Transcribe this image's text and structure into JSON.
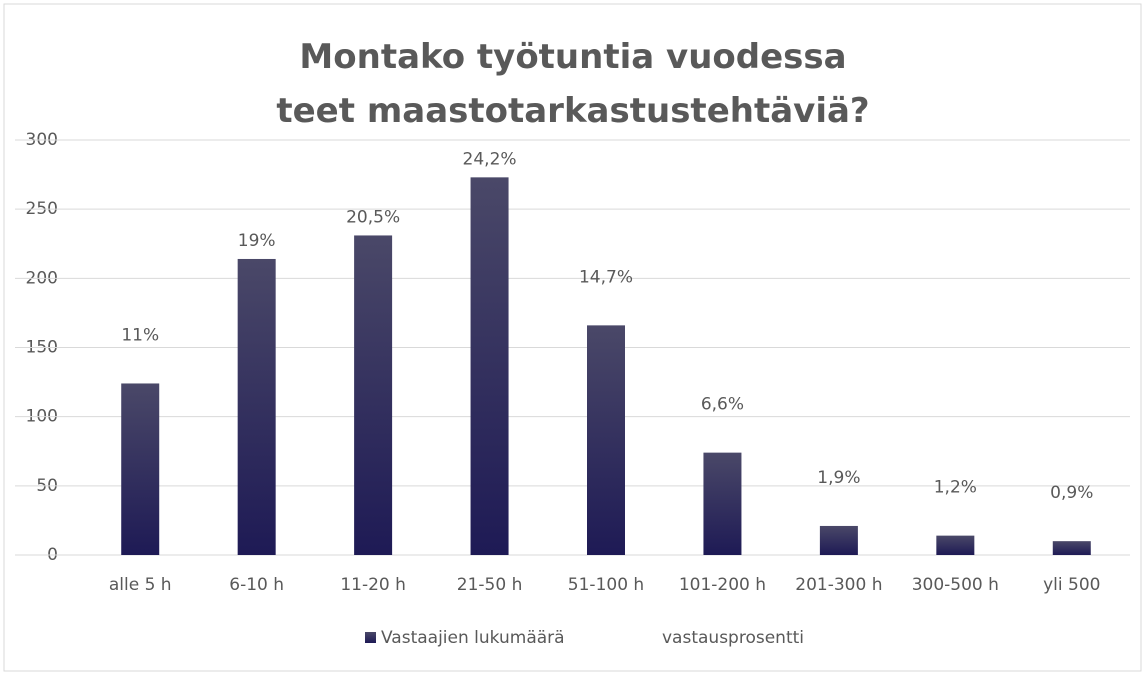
{
  "chart_data": {
    "type": "bar",
    "title": "Montako työtuntia vuodessa teet maastotarkastustehtäviä?",
    "categories": [
      "alle 5 h",
      "6-10 h",
      "11-20 h",
      "21-50 h",
      "51-100 h",
      "101-200 h",
      "201-300 h",
      "300-500 h",
      "yli 500"
    ],
    "series": [
      {
        "name": "Vastaajien lukumäärä",
        "color": "#1e1a55",
        "values": [
          124,
          214,
          231,
          273,
          166,
          74,
          21,
          14,
          10
        ]
      },
      {
        "name": "vastausprosentti",
        "values": [
          11,
          19,
          20.5,
          24.2,
          14.7,
          6.6,
          1.9,
          1.2,
          0.9
        ],
        "value_labels": [
          "11%",
          "19%",
          "20,5%",
          "24,2%",
          "14,7%",
          "6,6%",
          "1,9%",
          "1,2%",
          "0,9%"
        ]
      }
    ],
    "ylim": [
      0,
      300
    ],
    "yticks": [
      0,
      50,
      100,
      150,
      200,
      250,
      300
    ],
    "grid": true,
    "legend": "bottom"
  }
}
